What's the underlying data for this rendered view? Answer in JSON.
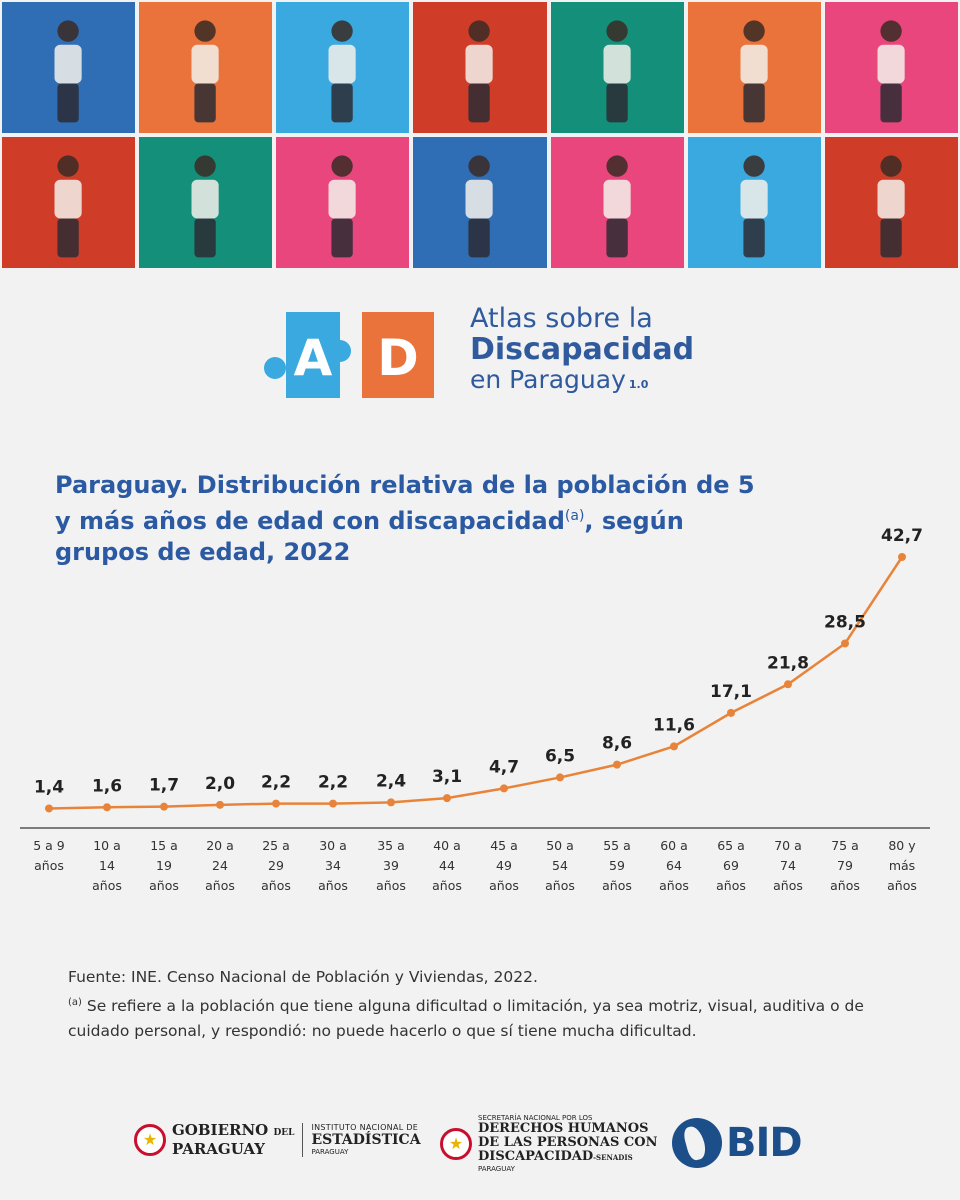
{
  "banner": {
    "tiles": [
      {
        "color": "#2f6db5"
      },
      {
        "color": "#e9733b"
      },
      {
        "color": "#3aa9e0"
      },
      {
        "color": "#cf3d28"
      },
      {
        "color": "#14907a"
      },
      {
        "color": "#e9733b"
      },
      {
        "color": "#e8467c"
      },
      {
        "color": "#cf3d28"
      },
      {
        "color": "#14907a"
      },
      {
        "color": "#e8467c"
      },
      {
        "color": "#2f6db5"
      },
      {
        "color": "#e8467c"
      },
      {
        "color": "#3aa9e0"
      },
      {
        "color": "#cf3d28"
      }
    ]
  },
  "logo": {
    "letter_a": "A",
    "letter_d": "D",
    "line1": "Atlas sobre la",
    "line2": "Discapacidad",
    "line3": "en Paraguay",
    "version": "1.0",
    "color_a": "#3aa9e0",
    "color_d": "#e9733b"
  },
  "title": {
    "text": "Paraguay. Distribución relativa de la población de 5 y más años de edad con discapacidad",
    "superscript": "(a)",
    "suffix": ", según grupos de edad, 2022"
  },
  "chart_data": {
    "type": "line",
    "title": "Paraguay. Distribución relativa de la población de 5 y más años de edad con discapacidad(a), según grupos de edad, 2022",
    "categories": [
      [
        "5 a 9",
        "años"
      ],
      [
        "10 a",
        "14",
        "años"
      ],
      [
        "15 a",
        "19",
        "años"
      ],
      [
        "20 a",
        "24",
        "años"
      ],
      [
        "25 a",
        "29",
        "años"
      ],
      [
        "30 a",
        "34",
        "años"
      ],
      [
        "35 a",
        "39",
        "años"
      ],
      [
        "40 a",
        "44",
        "años"
      ],
      [
        "45 a",
        "49",
        "años"
      ],
      [
        "50 a",
        "54",
        "años"
      ],
      [
        "55 a",
        "59",
        "años"
      ],
      [
        "60 a",
        "64",
        "años"
      ],
      [
        "65 a",
        "69",
        "años"
      ],
      [
        "70 a",
        "74",
        "años"
      ],
      [
        "75 a",
        "79",
        "años"
      ],
      [
        "80 y",
        "más",
        "años"
      ]
    ],
    "values": [
      1.4,
      1.6,
      1.7,
      2.0,
      2.2,
      2.2,
      2.4,
      3.1,
      4.7,
      6.5,
      8.6,
      11.6,
      17.1,
      21.8,
      28.5,
      42.7
    ],
    "labels": [
      "1,4",
      "1,6",
      "1,7",
      "2,0",
      "2,2",
      "2,2",
      "2,4",
      "3,1",
      "4,7",
      "6,5",
      "8,6",
      "11,6",
      "17,1",
      "21,8",
      "28,5",
      "42,7"
    ],
    "ylim": [
      0,
      45
    ],
    "line_color": "#e8843a",
    "xlabel": "",
    "ylabel": ""
  },
  "notes": {
    "source": "Fuente: INE. Censo Nacional de Población y Viviendas, 2022.",
    "footnote_mark": "(a)",
    "footnote": " Se refiere a la población que tiene alguna dificultad o limitación, ya sea motriz, visual, auditiva o de cuidado personal, y respondió: no puede hacerlo o que sí tiene mucha dificultad."
  },
  "footer": {
    "gob_line1": "GOBIERNO",
    "gob_del": "DEL",
    "gob_line2": "PARAGUAY",
    "ine_line1": "INSTITUTO NACIONAL DE",
    "ine_line2": "ESTADÍSTICA",
    "ine_line3": "PARAGUAY",
    "senadis_line1": "SECRETARÍA NACIONAL POR LOS",
    "senadis_line2": "DERECHOS HUMANOS",
    "senadis_line3": "DE LAS PERSONAS CON",
    "senadis_line4": "DISCAPACIDAD",
    "senadis_suffix": "-SENADIS",
    "senadis_line5": "PARAGUAY",
    "bid": "BID"
  }
}
